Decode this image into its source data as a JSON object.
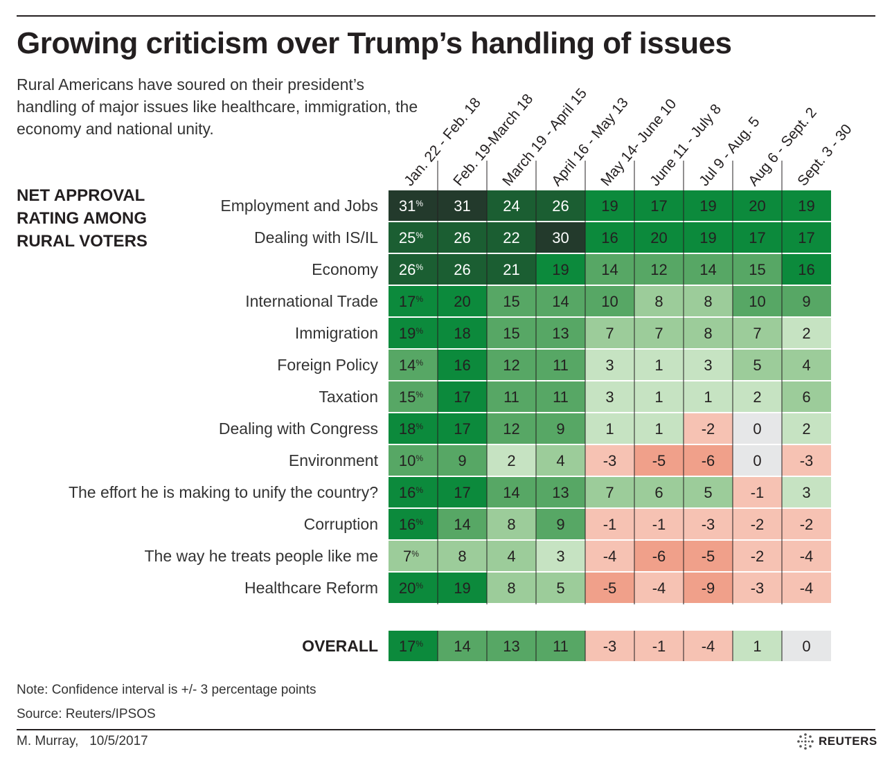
{
  "header": {
    "title": "Growing criticism over Trump’s handling of issues",
    "subtitle": "Rural Americans have soured on their president’s handling of major issues like healthcare, immigration, the economy and national unity.",
    "rating_label": "NET APPROVAL RATING AMONG RURAL VOTERS"
  },
  "footer": {
    "note": "Note: Confidence interval is +/- 3 percentage points",
    "source": "Source: Reuters/IPSOS",
    "credit": "M. Murray,   10/5/2017",
    "logo": "REUTERS"
  },
  "colors": {
    "darkest": "#233a2c",
    "dark_green": "#1b5e32",
    "green": "#0c8a3c",
    "mid_green": "#57a765",
    "light_green": "#9ccc9a",
    "pale_green": "#c6e3c2",
    "neutral": "#e6e7e8",
    "pale_red": "#f6c2b3",
    "red": "#f0a08a"
  },
  "chart_data": {
    "type": "heatmap",
    "unit_suffix": "%",
    "columns": [
      "Jan. 22 - Feb. 18",
      "Feb. 19-March 18",
      "March 19 - April 15",
      "April 16 - May 13",
      "May 14- June 10",
      "June 11 - July 8",
      "Jul 9 - Aug. 5",
      "Aug 6 - Sept. 2",
      "Sept. 3 - 30"
    ],
    "rows": [
      {
        "label": "Employment and Jobs",
        "values": [
          31,
          31,
          24,
          26,
          19,
          17,
          19,
          20,
          19
        ]
      },
      {
        "label": "Dealing with IS/IL",
        "values": [
          25,
          26,
          22,
          30,
          16,
          20,
          19,
          17,
          17
        ]
      },
      {
        "label": "Economy",
        "values": [
          26,
          26,
          21,
          19,
          14,
          12,
          14,
          15,
          16
        ]
      },
      {
        "label": "International Trade",
        "values": [
          17,
          20,
          15,
          14,
          10,
          8,
          8,
          10,
          9
        ]
      },
      {
        "label": "Immigration",
        "values": [
          19,
          18,
          15,
          13,
          7,
          7,
          8,
          7,
          2
        ]
      },
      {
        "label": "Foreign Policy",
        "values": [
          14,
          16,
          12,
          11,
          3,
          1,
          3,
          5,
          4
        ]
      },
      {
        "label": "Taxation",
        "values": [
          15,
          17,
          11,
          11,
          3,
          1,
          1,
          2,
          6
        ]
      },
      {
        "label": "Dealing with Congress",
        "values": [
          18,
          17,
          12,
          9,
          1,
          1,
          -2,
          0,
          2
        ]
      },
      {
        "label": "Environment",
        "values": [
          10,
          9,
          2,
          4,
          -3,
          -5,
          -6,
          0,
          -3
        ]
      },
      {
        "label": "The effort he is making to unify the country?",
        "values": [
          16,
          17,
          14,
          13,
          7,
          6,
          5,
          -1,
          3
        ]
      },
      {
        "label": "Corruption",
        "values": [
          16,
          14,
          8,
          9,
          -1,
          -1,
          -3,
          -2,
          -2
        ]
      },
      {
        "label": "The way he treats people like me",
        "values": [
          7,
          8,
          4,
          3,
          -4,
          -6,
          -5,
          -2,
          -4
        ]
      },
      {
        "label": "Healthcare Reform",
        "values": [
          20,
          19,
          8,
          5,
          -5,
          -4,
          -9,
          -3,
          -4
        ]
      }
    ],
    "overall": {
      "label": "OVERALL",
      "values": [
        17,
        14,
        13,
        11,
        -3,
        -1,
        -4,
        1,
        0
      ]
    }
  }
}
